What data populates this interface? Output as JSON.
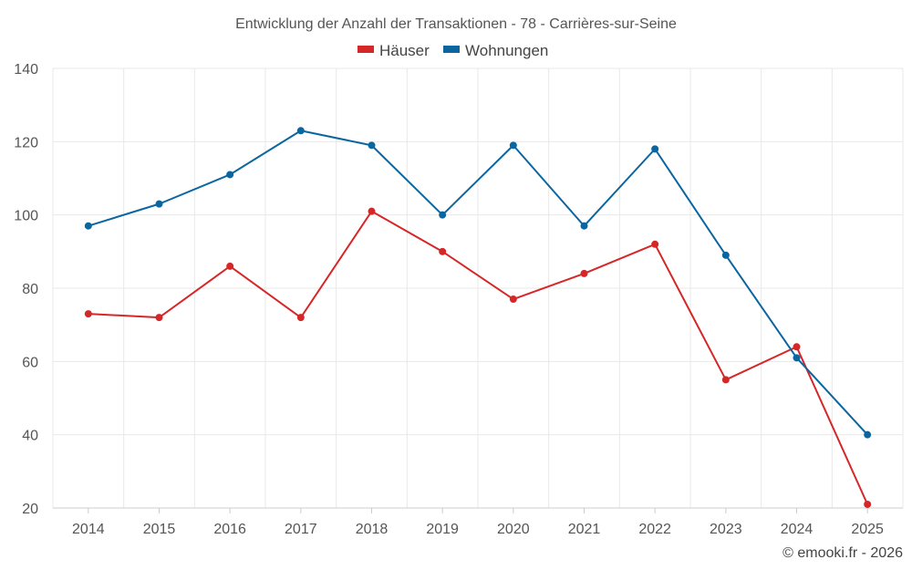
{
  "chart_data": {
    "type": "line",
    "title": "Entwicklung der Anzahl der Transaktionen - 78 - Carrières-sur-Seine",
    "categories": [
      "2014",
      "2015",
      "2016",
      "2017",
      "2018",
      "2019",
      "2020",
      "2021",
      "2022",
      "2023",
      "2024",
      "2025"
    ],
    "series": [
      {
        "name": "Häuser",
        "color": "#d62728",
        "values": [
          73,
          72,
          86,
          72,
          101,
          90,
          77,
          84,
          92,
          55,
          64,
          21
        ]
      },
      {
        "name": "Wohnungen",
        "color": "#0b66a0",
        "values": [
          97,
          103,
          111,
          123,
          119,
          100,
          119,
          97,
          118,
          89,
          61,
          40
        ]
      }
    ],
    "ylim": [
      20,
      140
    ],
    "yticks": [
      20,
      40,
      60,
      80,
      100,
      120,
      140
    ],
    "xlabel": "",
    "ylabel": "",
    "grid": true,
    "legend_position": "top-center"
  },
  "credit": "© emooki.fr - 2026"
}
